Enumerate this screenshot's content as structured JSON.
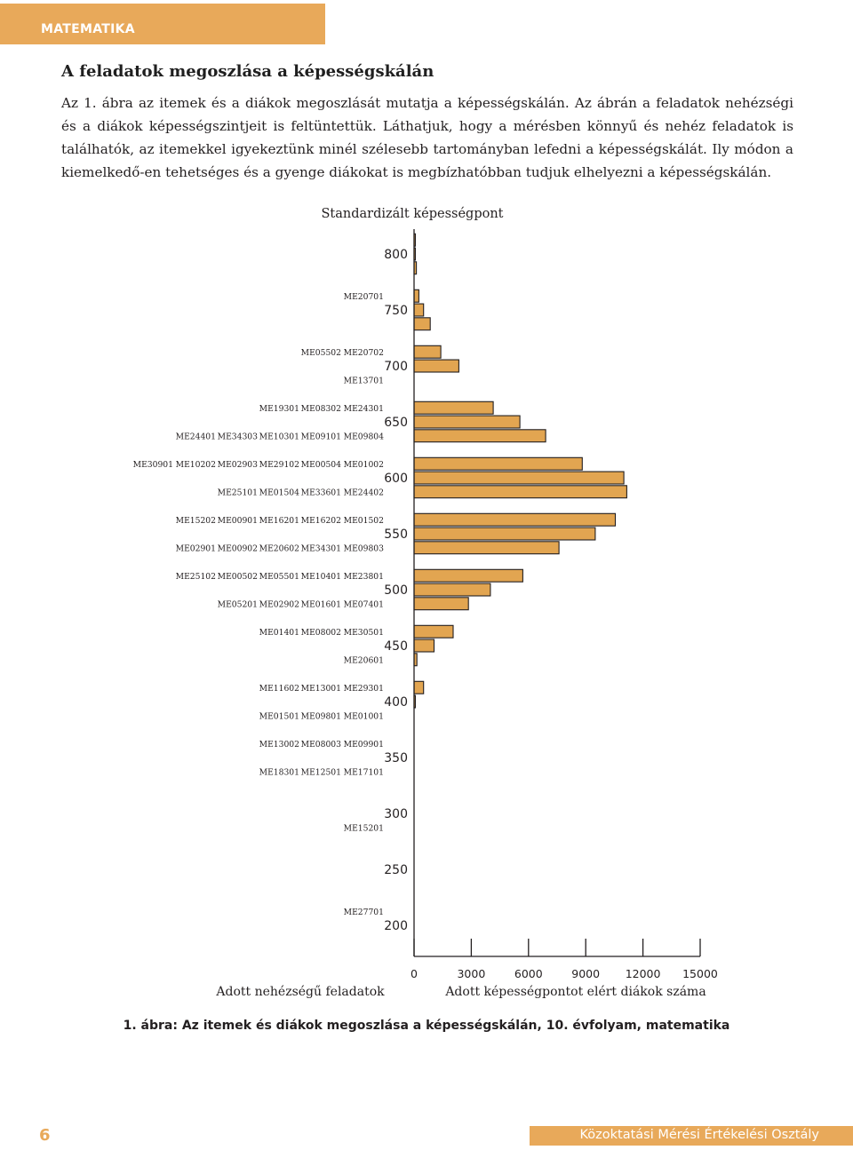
{
  "header": {
    "section": "MATEMATIKA"
  },
  "heading": "A feladatok megoszlása a képességskálán",
  "intro": "Az 1. ábra az itemek és a diákok megoszlását mutatja a képességskálán. Az ábrán a feladatok nehézségi és a diákok képességszintjeit is feltüntettük. Láthatjuk, hogy a mérésben könnyű és nehéz feladatok is találhatók, az itemekkel igyekeztünk minél szélesebb tartományban lefedni a képességskálát. Ily módon a kiemelkedő-en tehetséges és a gyenge diákokat is megbízhatóbban tudjuk elhelyezni a képességskálán.",
  "colors": {
    "accent": "#e8a95a",
    "bar_fill": "#e2a551",
    "bar_stroke": "#231f20"
  },
  "chart_data": {
    "type": "bar",
    "orientation": "horizontal",
    "title": "Standardizált képességpont",
    "y_ticks": [
      800,
      750,
      700,
      650,
      600,
      550,
      500,
      450,
      400,
      350,
      300,
      250,
      200
    ],
    "y_range": [
      187.5,
      812.5
    ],
    "x_ticks": [
      0,
      3000,
      6000,
      9000,
      12000,
      15000
    ],
    "x_range": [
      0,
      15000
    ],
    "x_label": "Adott képességpontot elért diákok száma",
    "left_label": "Adott nehézségű feladatok",
    "bin_width": 12.5,
    "students": [
      {
        "score": 812.5,
        "count": 50
      },
      {
        "score": 800,
        "count": 60
      },
      {
        "score": 787.5,
        "count": 120
      },
      {
        "score": 762.5,
        "count": 250
      },
      {
        "score": 750,
        "count": 500
      },
      {
        "score": 737.5,
        "count": 850
      },
      {
        "score": 712.5,
        "count": 1400
      },
      {
        "score": 700,
        "count": 2350
      },
      {
        "score": 662.5,
        "count": 4150
      },
      {
        "score": 650,
        "count": 5550
      },
      {
        "score": 637.5,
        "count": 6900
      },
      {
        "score": 612.5,
        "count": 8820
      },
      {
        "score": 600,
        "count": 11000
      },
      {
        "score": 587.5,
        "count": 11150
      },
      {
        "score": 562.5,
        "count": 10550
      },
      {
        "score": 550,
        "count": 9500
      },
      {
        "score": 537.5,
        "count": 7600
      },
      {
        "score": 512.5,
        "count": 5700
      },
      {
        "score": 500,
        "count": 4000
      },
      {
        "score": 487.5,
        "count": 2850
      },
      {
        "score": 462.5,
        "count": 2050
      },
      {
        "score": 450,
        "count": 1050
      },
      {
        "score": 437.5,
        "count": 150
      },
      {
        "score": 412.5,
        "count": 500
      },
      {
        "score": 400,
        "count": 30
      }
    ],
    "items": [
      {
        "score": 762.5,
        "codes": [
          "ME20701"
        ]
      },
      {
        "score": 712.5,
        "codes": [
          "ME05502",
          "ME20702"
        ]
      },
      {
        "score": 687.5,
        "codes": [
          "ME13701"
        ]
      },
      {
        "score": 662.5,
        "codes": [
          "ME19301",
          "ME08302",
          "ME24301"
        ]
      },
      {
        "score": 637.5,
        "codes": [
          "ME24401",
          "ME34303",
          "ME10301",
          "ME09101",
          "ME09804"
        ]
      },
      {
        "score": 612.5,
        "codes": [
          "ME30901",
          "ME10202",
          "ME02903",
          "ME29102",
          "ME00504",
          "ME01002"
        ]
      },
      {
        "score": 587.5,
        "codes": [
          "ME25101",
          "ME01504",
          "ME33601",
          "ME24402"
        ]
      },
      {
        "score": 562.5,
        "codes": [
          "ME15202",
          "ME00901",
          "ME16201",
          "ME16202",
          "ME01502"
        ]
      },
      {
        "score": 537.5,
        "codes": [
          "ME02901",
          "ME00902",
          "ME20602",
          "ME34301",
          "ME09803"
        ]
      },
      {
        "score": 512.5,
        "codes": [
          "ME25102",
          "ME00502",
          "ME05501",
          "ME10401",
          "ME23801"
        ]
      },
      {
        "score": 487.5,
        "codes": [
          "ME05201",
          "ME02902",
          "ME01601",
          "ME07401"
        ]
      },
      {
        "score": 462.5,
        "codes": [
          "ME01401",
          "ME08002",
          "ME30501"
        ]
      },
      {
        "score": 437.5,
        "codes": [
          "ME20601"
        ]
      },
      {
        "score": 412.5,
        "codes": [
          "ME11602",
          "ME13001",
          "ME29301"
        ]
      },
      {
        "score": 387.5,
        "codes": [
          "ME01501",
          "ME09801",
          "ME01001"
        ]
      },
      {
        "score": 362.5,
        "codes": [
          "ME13002",
          "ME08003",
          "ME09901"
        ]
      },
      {
        "score": 337.5,
        "codes": [
          "ME18301",
          "ME12501",
          "ME17101"
        ]
      },
      {
        "score": 287.5,
        "codes": [
          "ME15201"
        ]
      },
      {
        "score": 212.5,
        "codes": [
          "ME27701"
        ]
      }
    ]
  },
  "caption": "1. ábra: Az itemek és diákok megoszlása a képességskálán, 10. évfolyam, matematika",
  "footer": {
    "page_number": "6",
    "organization": "Közoktatási Mérési Értékelési Osztály"
  }
}
